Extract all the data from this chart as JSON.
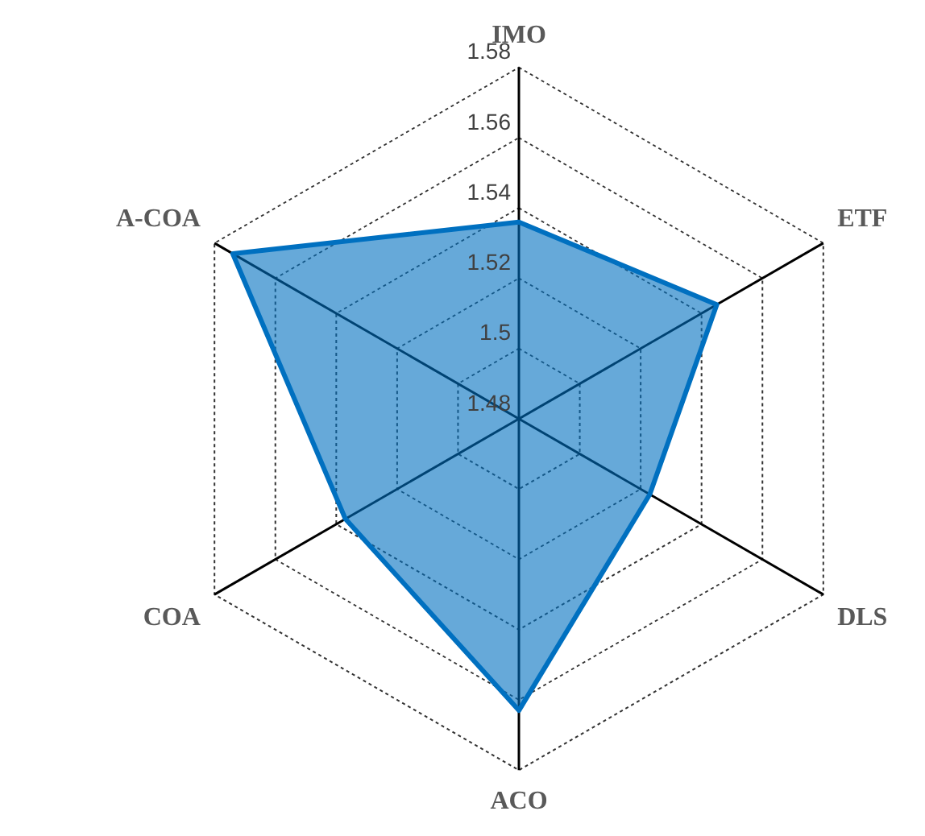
{
  "chart_data": {
    "type": "radar",
    "categories": [
      "IMO",
      "ETF",
      "DLS",
      "ACO",
      "COA",
      "A-COA"
    ],
    "series": [
      {
        "color": "#0070c0",
        "values": [
          1.536,
          1.545,
          1.523,
          1.563,
          1.537,
          1.574
        ]
      }
    ],
    "ylim": [
      1.48,
      1.58
    ],
    "yticks": [
      1.48,
      1.5,
      1.52,
      1.54,
      1.56,
      1.58
    ],
    "grid": true,
    "legend": false,
    "marker": "none"
  }
}
